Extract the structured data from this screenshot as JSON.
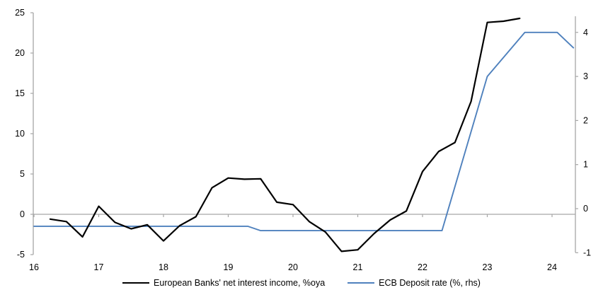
{
  "chart_data": {
    "type": "line",
    "title": "",
    "x_axis": {
      "tick_labels": [
        "16",
        "17",
        "18",
        "19",
        "20",
        "21",
        "22",
        "23",
        "24"
      ],
      "tick_values": [
        16,
        17,
        18,
        19,
        20,
        21,
        22,
        23,
        24
      ],
      "range": [
        16,
        24.36
      ]
    },
    "left_axis": {
      "tick_labels": [
        "25",
        "20",
        "15",
        "10",
        "5",
        "0",
        "-5"
      ],
      "tick_values": [
        25,
        20,
        15,
        10,
        5,
        0,
        -5
      ],
      "range": [
        -5,
        25
      ]
    },
    "right_axis": {
      "tick_labels": [
        "4",
        "3",
        "2",
        "1",
        "0",
        "-1"
      ],
      "tick_values": [
        4,
        3,
        2,
        1,
        0,
        -1
      ],
      "range": [
        -1,
        4.37
      ]
    },
    "grid": "zero-line-only",
    "legend_position": "bottom",
    "series": [
      {
        "name": "European Banks' net interest income, %oya",
        "axis": "left",
        "color": "#000000",
        "stroke_width": 2.2,
        "points": [
          [
            16.25,
            -0.6
          ],
          [
            16.5,
            -0.9
          ],
          [
            16.75,
            -2.8
          ],
          [
            17,
            1.0
          ],
          [
            17.25,
            -1.0
          ],
          [
            17.5,
            -1.8
          ],
          [
            17.75,
            -1.3
          ],
          [
            18,
            -3.3
          ],
          [
            18.25,
            -1.4
          ],
          [
            18.5,
            -0.3
          ],
          [
            18.75,
            3.3
          ],
          [
            19,
            4.5
          ],
          [
            19.25,
            4.35
          ],
          [
            19.5,
            4.4
          ],
          [
            19.75,
            1.5
          ],
          [
            20,
            1.2
          ],
          [
            20.25,
            -0.9
          ],
          [
            20.5,
            -2.2
          ],
          [
            20.75,
            -4.6
          ],
          [
            21,
            -4.4
          ],
          [
            21.25,
            -2.4
          ],
          [
            21.5,
            -0.7
          ],
          [
            21.75,
            0.4
          ],
          [
            22,
            5.3
          ],
          [
            22.25,
            7.8
          ],
          [
            22.5,
            8.9
          ],
          [
            22.75,
            14.0
          ],
          [
            23,
            23.8
          ],
          [
            23.25,
            23.95
          ],
          [
            23.5,
            24.3
          ]
        ]
      },
      {
        "name": "ECB Deposit rate (%, rhs)",
        "axis": "right",
        "color": "#4F81BD",
        "stroke_width": 1.9,
        "points": [
          [
            16.0,
            -0.4
          ],
          [
            19.3,
            -0.4
          ],
          [
            19.5,
            -0.5
          ],
          [
            22.3,
            -0.5
          ],
          [
            23.0,
            3.0
          ],
          [
            23.58,
            4.0
          ],
          [
            24.08,
            4.0
          ],
          [
            24.33,
            3.65
          ]
        ]
      }
    ],
    "legend": [
      {
        "label": "European Banks' net interest income, %oya",
        "color": "#000000",
        "thickness": 2.4
      },
      {
        "label": "ECB Deposit rate (%, rhs)",
        "color": "#4F81BD",
        "thickness": 2.0
      }
    ],
    "colors": {
      "axis_gray": "#A6A6A6",
      "text": "#000000",
      "background": "#FFFFFF"
    }
  }
}
